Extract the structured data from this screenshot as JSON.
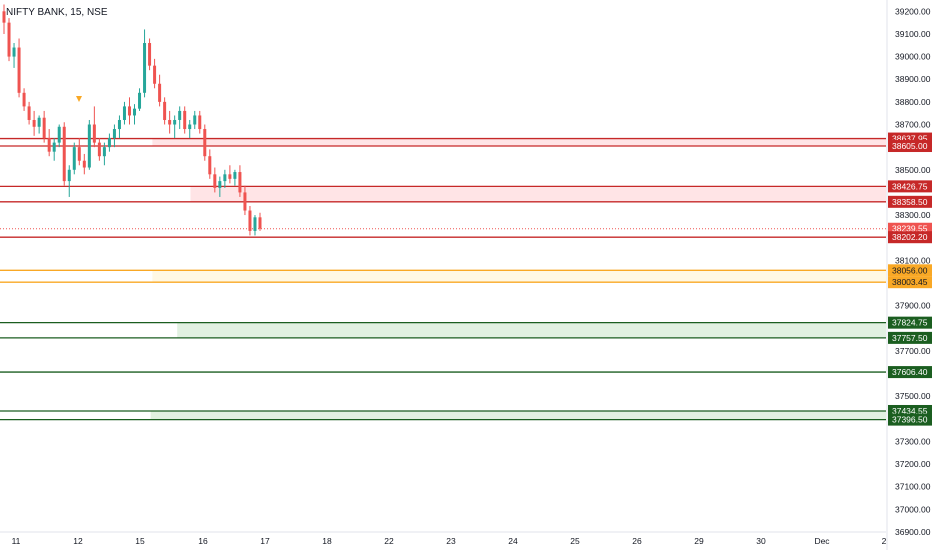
{
  "header": {
    "symbol_label": "NIFTY BANK, 15, NSE"
  },
  "colors": {
    "up": "#26a69a",
    "down": "#ef5350",
    "resistance": "#c62828",
    "resistance_fill": "#ffcdd2",
    "pivot": "#f9a825",
    "pivot_fill": "#fff3cd",
    "support": "#1b5e20",
    "support_fill": "#c8e6c9",
    "axis_text": "#131722"
  },
  "chart_data": {
    "type": "candlestick",
    "y_axis": {
      "ylim": [
        36900,
        39250
      ],
      "ticks": [
        "39200.00",
        "39100.00",
        "39000.00",
        "38900.00",
        "38800.00",
        "38700.00",
        "38500.00",
        "38300.00",
        "38100.00",
        "37900.00",
        "37700.00",
        "37500.00",
        "37300.00",
        "37200.00",
        "37100.00",
        "37000.00",
        "36900.00"
      ]
    },
    "x_axis": {
      "labels": [
        "11",
        "12",
        "15",
        "16",
        "17",
        "18",
        "22",
        "23",
        "24",
        "25",
        "26",
        "29",
        "30",
        "Dec",
        "2"
      ]
    },
    "price_tags": [
      {
        "value": "38637.95",
        "kind": "resistance"
      },
      {
        "value": "38605.00",
        "kind": "resistance"
      },
      {
        "value": "38426.75",
        "kind": "resistance"
      },
      {
        "value": "38358.50",
        "kind": "resistance"
      },
      {
        "value": "38239.55",
        "kind": "last"
      },
      {
        "value": "38202.20",
        "kind": "resistance"
      },
      {
        "value": "38056.00",
        "kind": "pivot"
      },
      {
        "value": "38003.45",
        "kind": "pivot"
      },
      {
        "value": "37824.75",
        "kind": "support"
      },
      {
        "value": "37757.50",
        "kind": "support"
      },
      {
        "value": "37606.40",
        "kind": "support"
      },
      {
        "value": "37434.55",
        "kind": "support"
      },
      {
        "value": "37396.50",
        "kind": "support"
      }
    ],
    "zones": [
      {
        "top": 38637.95,
        "bottom": 38605.0,
        "kind": "resistance",
        "x0": 0,
        "fill_from": 0.172
      },
      {
        "top": 38426.75,
        "bottom": 38358.5,
        "kind": "resistance",
        "x0": 0,
        "fill_from": 0.215
      },
      {
        "top": 38056.0,
        "bottom": 38003.45,
        "kind": "pivot",
        "x0": 0,
        "fill_from": 0.172
      },
      {
        "top": 37824.75,
        "bottom": 37757.5,
        "kind": "support",
        "x0": 0,
        "fill_from": 0.2
      },
      {
        "top": 37434.55,
        "bottom": 37396.5,
        "kind": "support",
        "x0": 0,
        "fill_from": 0.17
      }
    ],
    "lines": [
      {
        "value": 38202.2,
        "kind": "resistance"
      },
      {
        "value": 37606.4,
        "kind": "support"
      }
    ],
    "candles": [
      [
        39200,
        39230,
        39100,
        39150
      ],
      [
        39150,
        39170,
        38980,
        39000
      ],
      [
        39000,
        39060,
        38950,
        39040
      ],
      [
        39040,
        39080,
        38820,
        38840
      ],
      [
        38840,
        38860,
        38760,
        38780
      ],
      [
        38780,
        38800,
        38700,
        38720
      ],
      [
        38720,
        38760,
        38650,
        38690
      ],
      [
        38690,
        38740,
        38660,
        38730
      ],
      [
        38730,
        38760,
        38620,
        38640
      ],
      [
        38640,
        38680,
        38560,
        38580
      ],
      [
        38580,
        38640,
        38540,
        38620
      ],
      [
        38620,
        38700,
        38600,
        38690
      ],
      [
        38690,
        38710,
        38430,
        38450
      ],
      [
        38450,
        38520,
        38380,
        38500
      ],
      [
        38500,
        38620,
        38480,
        38600
      ],
      [
        38600,
        38640,
        38520,
        38540
      ],
      [
        38540,
        38570,
        38480,
        38510
      ],
      [
        38510,
        38720,
        38500,
        38700
      ],
      [
        38700,
        38780,
        38600,
        38620
      ],
      [
        38620,
        38640,
        38540,
        38560
      ],
      [
        38560,
        38620,
        38520,
        38600
      ],
      [
        38600,
        38660,
        38580,
        38640
      ],
      [
        38640,
        38700,
        38600,
        38680
      ],
      [
        38680,
        38740,
        38640,
        38720
      ],
      [
        38720,
        38800,
        38700,
        38780
      ],
      [
        38780,
        38820,
        38700,
        38740
      ],
      [
        38740,
        38790,
        38700,
        38770
      ],
      [
        38770,
        38860,
        38760,
        38840
      ],
      [
        38840,
        39120,
        38820,
        39060
      ],
      [
        39060,
        39080,
        38940,
        38960
      ],
      [
        38960,
        38990,
        38860,
        38880
      ],
      [
        38880,
        38920,
        38780,
        38800
      ],
      [
        38800,
        38820,
        38700,
        38720
      ],
      [
        38720,
        38760,
        38660,
        38700
      ],
      [
        38700,
        38740,
        38640,
        38720
      ],
      [
        38720,
        38780,
        38680,
        38760
      ],
      [
        38760,
        38780,
        38660,
        38680
      ],
      [
        38680,
        38720,
        38640,
        38700
      ],
      [
        38700,
        38760,
        38680,
        38740
      ],
      [
        38740,
        38760,
        38660,
        38680
      ],
      [
        38680,
        38700,
        38540,
        38560
      ],
      [
        38560,
        38590,
        38460,
        38480
      ],
      [
        38480,
        38510,
        38400,
        38420
      ],
      [
        38420,
        38470,
        38380,
        38450
      ],
      [
        38450,
        38500,
        38420,
        38480
      ],
      [
        38480,
        38520,
        38440,
        38460
      ],
      [
        38460,
        38500,
        38430,
        38490
      ],
      [
        38490,
        38520,
        38380,
        38400
      ],
      [
        38400,
        38430,
        38300,
        38320
      ],
      [
        38320,
        38340,
        38210,
        38230
      ],
      [
        38230,
        38300,
        38210,
        38290
      ],
      [
        38290,
        38310,
        38230,
        38240
      ]
    ]
  }
}
